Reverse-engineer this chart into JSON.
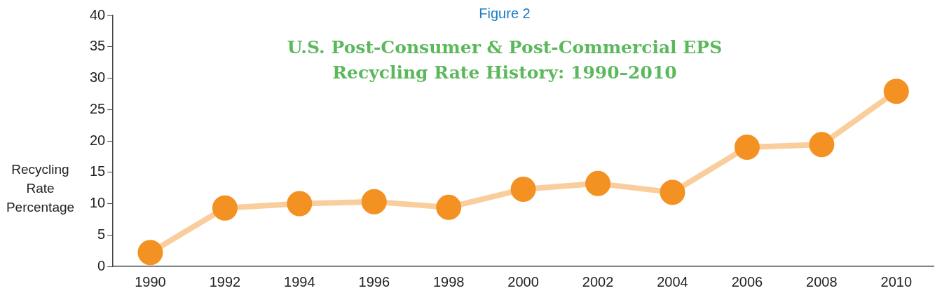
{
  "chart_data": {
    "type": "line",
    "title": "U.S. Post-Consumer & Post-Commercial EPS Recycling Rate History: 1990–2010",
    "annotations": [
      "Figure 2"
    ],
    "ylabel": "Recycling Rate Percentage",
    "categories": [
      "1990",
      "1992",
      "1994",
      "1996",
      "1998",
      "2000",
      "2002",
      "2004",
      "2006",
      "2008",
      "2010"
    ],
    "series": [
      {
        "color": "#f39223",
        "values": [
          2.2,
          9.3,
          10.0,
          10.3,
          9.4,
          12.3,
          13.2,
          11.8,
          19.0,
          19.4,
          27.9
        ]
      }
    ],
    "ylim": [
      0,
      40
    ],
    "yticks": [
      0,
      5,
      10,
      15,
      20,
      25,
      30,
      35,
      40
    ],
    "grid": false,
    "legend": false,
    "marker": "circle",
    "line_style": "solid"
  }
}
